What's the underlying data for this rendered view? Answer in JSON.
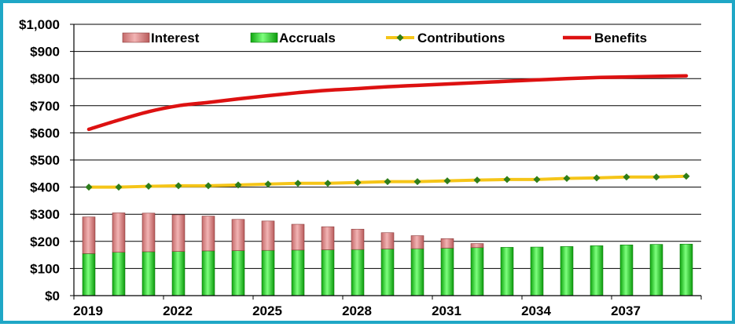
{
  "chart_data": {
    "type": "bar",
    "years": [
      2019,
      2020,
      2021,
      2022,
      2023,
      2024,
      2025,
      2026,
      2027,
      2028,
      2029,
      2030,
      2031,
      2032,
      2033,
      2034,
      2035,
      2036,
      2037,
      2038,
      2039
    ],
    "x_tick_labels": [
      "2019",
      "2022",
      "2025",
      "2028",
      "2031",
      "2034",
      "2037"
    ],
    "y_tick_labels": [
      "$0",
      "$100",
      "$200",
      "$300",
      "$400",
      "$500",
      "$600",
      "$700",
      "$800",
      "$900",
      "$1,000"
    ],
    "ylim": [
      0,
      1000
    ],
    "ystep": 100,
    "grid": true,
    "legend_position": "top",
    "title": "",
    "xlabel": "",
    "ylabel": "",
    "series": [
      {
        "name": "Interest",
        "kind": "stacked-bar",
        "color": "#e08b8b",
        "values": [
          135,
          145,
          142,
          135,
          128,
          115,
          108,
          95,
          85,
          75,
          60,
          48,
          35,
          15,
          0,
          0,
          0,
          0,
          0,
          0,
          0
        ]
      },
      {
        "name": "Accruals",
        "kind": "stacked-bar",
        "color": "#22dd22",
        "values": [
          155,
          160,
          162,
          163,
          165,
          166,
          167,
          168,
          169,
          170,
          172,
          173,
          175,
          177,
          178,
          179,
          181,
          184,
          187,
          189,
          190
        ]
      },
      {
        "name": "Contributions",
        "kind": "line-marker",
        "color": "#f5c518",
        "marker_color": "#2e7d1a",
        "values": [
          400,
          400,
          403,
          405,
          405,
          408,
          411,
          414,
          414,
          417,
          420,
          420,
          423,
          426,
          428,
          428,
          432,
          434,
          437,
          437,
          440
        ]
      },
      {
        "name": "Benefits",
        "kind": "line",
        "color": "#dd1111",
        "values": [
          613,
          647,
          678,
          700,
          712,
          725,
          737,
          748,
          757,
          763,
          770,
          775,
          780,
          785,
          790,
          795,
          800,
          804,
          806,
          808,
          810
        ]
      }
    ]
  }
}
